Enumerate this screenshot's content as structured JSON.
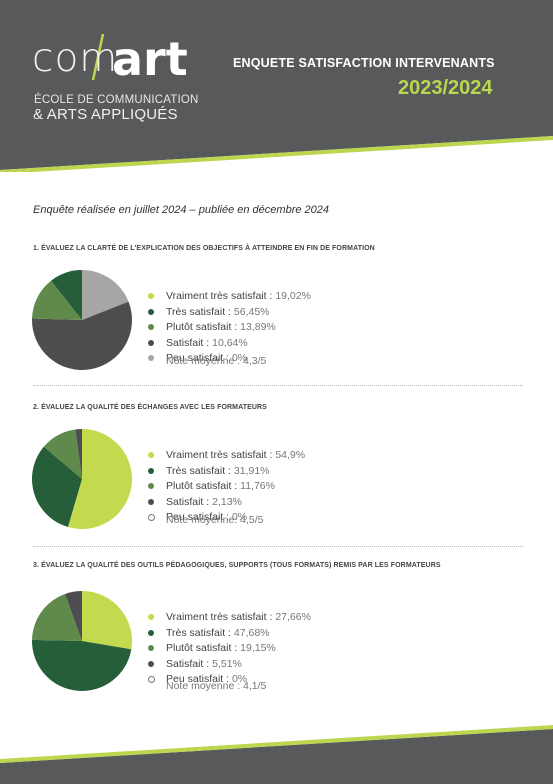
{
  "header": {
    "logo_com": "com",
    "logo_art": "art",
    "logo_line1": "ÉCOLE DE COMMUNICATION",
    "logo_line2": "& ARTS APPLIQUÉS",
    "title": "ENQUETE SATISFACTION INTERVENANTS",
    "year": "2023/2024"
  },
  "intro": "Enquête réalisée en juillet 2024 – publiée en décembre 2024",
  "colors": {
    "header_bg": "#58595b",
    "accent_green": "#bcd64f",
    "vraiment_tres": "#c3d94e",
    "tres": "#265e3a",
    "plutot": "#5f8a4c",
    "satisfait": "#4d4d4f",
    "peu": "#a6a6a6"
  },
  "chart_data": [
    {
      "type": "pie",
      "title": "1. ÉVALUEZ LA CLARTÉ DE L'EXPLICATION DES OBJECTIFS À ATTEINDRE EN FIN DE FORMATION",
      "categories": [
        "Vraiment très satisfait",
        "Très satisfait",
        "Plutôt satisfait",
        "Satisfait",
        "Peu satisfait"
      ],
      "labels": [
        "19,02%",
        "56,45%",
        "13,89%",
        "10,64%",
        "0%"
      ],
      "values": [
        19.02,
        56.45,
        13.89,
        10.64,
        0
      ],
      "slice_colors": [
        "#a6a6a6",
        "#4d4d4f",
        "#5f8a4c",
        "#265e3a",
        "#a6a6a6"
      ],
      "dot_colors": [
        "#c3d94e",
        "#265e3a",
        "#5f8a4c",
        "#4d4d4f",
        "#a6a6a6"
      ],
      "hollow_last": false,
      "note": "Note moyenne : 4,3/5"
    },
    {
      "type": "pie",
      "title": "2. ÉVALUEZ LA QUALITÉ DES ÉCHANGES AVEC LES FORMATEURS",
      "categories": [
        "Vraiment très satisfait",
        "Très satisfait",
        "Plutôt satisfait",
        "Satisfait",
        "Peu satisfait"
      ],
      "labels": [
        "54,9%",
        "31,91%",
        "11,76%",
        "2,13%",
        "0%"
      ],
      "values": [
        54.9,
        31.91,
        11.76,
        2.13,
        0
      ],
      "slice_colors": [
        "#c3d94e",
        "#265e3a",
        "#5f8a4c",
        "#4d4d4f",
        "#a6a6a6"
      ],
      "dot_colors": [
        "#c3d94e",
        "#265e3a",
        "#5f8a4c",
        "#4d4d4f",
        "#ffffff"
      ],
      "hollow_last": true,
      "note": "Note moyenne: 4,5/5"
    },
    {
      "type": "pie",
      "title": "3. ÉVALUEZ LA QUALITÉ DES OUTILS PÉDAGOGIQUES, SUPPORTS (TOUS FORMATS) REMIS PAR LES FORMATEURS",
      "categories": [
        "Vraiment très satisfait",
        "Très satisfait",
        "Plutôt satisfait",
        "Satisfait",
        "Peu satisfait"
      ],
      "labels": [
        "27,66%",
        "47,68%",
        "19,15%",
        "5,51%",
        "0%"
      ],
      "values": [
        27.66,
        47.68,
        19.15,
        5.51,
        0
      ],
      "slice_colors": [
        "#c3d94e",
        "#265e3a",
        "#5f8a4c",
        "#4d4d4f",
        "#a6a6a6"
      ],
      "dot_colors": [
        "#c3d94e",
        "#265e3a",
        "#5f8a4c",
        "#4d4d4f",
        "#ffffff"
      ],
      "hollow_last": true,
      "note": "Note moyenne : 4,1/5"
    }
  ]
}
